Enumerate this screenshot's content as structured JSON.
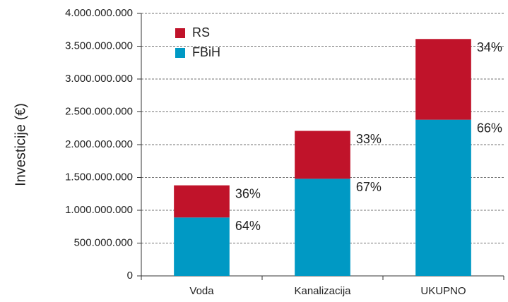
{
  "chart_data": {
    "type": "stacked_bar",
    "y_label": "Investicije (€)",
    "categories": [
      "Voda",
      "Kanalizacija",
      "UKUPNO"
    ],
    "series": [
      {
        "name": "FBiH",
        "color": "#0099c4",
        "values": [
          890000000,
          1480000000,
          2380000000
        ],
        "shares": [
          {
            "value": 64,
            "label": "64%"
          },
          {
            "value": 67,
            "label": "67%"
          },
          {
            "value": 66,
            "label": "66%"
          }
        ]
      },
      {
        "name": "RS",
        "color": "#c0132a",
        "values": [
          490000000,
          730000000,
          1230000000
        ],
        "shares": [
          {
            "value": 36,
            "label": "36%"
          },
          {
            "value": 33,
            "label": "33%"
          },
          {
            "value": 34,
            "label": "34%"
          }
        ]
      }
    ],
    "ylim": [
      0,
      4000000000
    ],
    "yticks": [
      0,
      {
        "value": 500000000,
        "label": "500.000.000"
      },
      {
        "value": 1000000000,
        "label": "1.000.000.000"
      },
      {
        "value": 1500000000,
        "label": "1.500.000.000"
      },
      {
        "value": 2000000000,
        "label": "2.000.000.000"
      },
      {
        "value": 2500000000,
        "label": "2.500.000.000"
      },
      {
        "value": 3000000000,
        "label": "3.000.000.000"
      },
      {
        "value": 3500000000,
        "label": "3.500.000.000"
      },
      {
        "value": 4000000000,
        "label": "4.000.000.000"
      }
    ],
    "grid": true,
    "legend": "top-left"
  }
}
